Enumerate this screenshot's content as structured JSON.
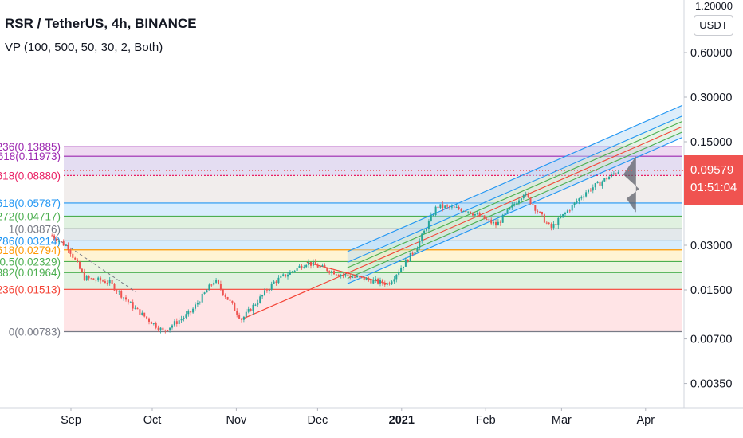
{
  "header": {
    "title": "RSR / TetherUS, 4h, BINANCE",
    "indicator": "VP (100, 500, 50, 30, 2, Both)"
  },
  "price_axis": {
    "unit": "USDT",
    "top_clipped_label": "1.20000",
    "last_price": "0.09579",
    "countdown": "01:51:04"
  },
  "colors": {
    "candle_up": "#26a69a",
    "candle_down": "#ef5350",
    "channel_blue": "#2196f3",
    "channel_green": "#4caf50",
    "median_red": "#f44336",
    "price_tag": "#f05350"
  },
  "chart_data": {
    "type": "candlestick",
    "symbol": "RSR / TetherUS",
    "timeframe": "4h",
    "exchange": "BINANCE",
    "y_scale": "log",
    "y_ticks": [
      0.6,
      0.3,
      0.15,
      0.03,
      0.015,
      0.007,
      0.0035
    ],
    "y_tick_labels": [
      "0.60000",
      "0.30000",
      "0.15000",
      "0.03000",
      "0.01500",
      "0.00700",
      "0.00350"
    ],
    "x_tick_labels": [
      "Sep",
      "Oct",
      "Nov",
      "Dec",
      "2021",
      "Feb",
      "Mar",
      "Apr"
    ],
    "fib_levels": [
      {
        "label": "236(0.13885)",
        "value": 0.13885,
        "color": "#9c27b0"
      },
      {
        "label": "618(0.11973)",
        "value": 0.11973,
        "color": "#9c27b0"
      },
      {
        "label": "618(0.08880)",
        "value": 0.0888,
        "color": "#e91e63"
      },
      {
        "label": "618(0.05787)",
        "value": 0.05787,
        "color": "#2196f3"
      },
      {
        "label": "272(0.04717)",
        "value": 0.04717,
        "color": "#4caf50"
      },
      {
        "label": "1(0.03876)",
        "value": 0.03876,
        "color": "#787b86"
      },
      {
        "label": "786(0.03214)",
        "value": 0.03214,
        "color": "#2196f3"
      },
      {
        "label": "618(0.02794)",
        "value": 0.02794,
        "color": "#ff9800"
      },
      {
        "label": "0.5(0.02329)",
        "value": 0.02329,
        "color": "#4caf50"
      },
      {
        "label": "382(0.01964)",
        "value": 0.01964,
        "color": "#4caf50"
      },
      {
        "label": "236(0.01513)",
        "value": 0.01513,
        "color": "#f44336"
      },
      {
        "label": "0(0.00783)",
        "value": 0.00783,
        "color": "#787b86"
      }
    ],
    "price_path": [
      {
        "date": "2020-08-25",
        "price": 0.035
      },
      {
        "date": "2020-08-31",
        "price": 0.029
      },
      {
        "date": "2020-09-06",
        "price": 0.018
      },
      {
        "date": "2020-09-15",
        "price": 0.017
      },
      {
        "date": "2020-09-25",
        "price": 0.011
      },
      {
        "date": "2020-10-05",
        "price": 0.0079
      },
      {
        "date": "2020-10-15",
        "price": 0.0105
      },
      {
        "date": "2020-10-24",
        "price": 0.0175
      },
      {
        "date": "2020-11-03",
        "price": 0.0095
      },
      {
        "date": "2020-11-15",
        "price": 0.017
      },
      {
        "date": "2020-11-27",
        "price": 0.023
      },
      {
        "date": "2020-12-10",
        "price": 0.019
      },
      {
        "date": "2020-12-27",
        "price": 0.0165
      },
      {
        "date": "2021-01-06",
        "price": 0.028
      },
      {
        "date": "2021-01-14",
        "price": 0.055
      },
      {
        "date": "2021-01-25",
        "price": 0.052
      },
      {
        "date": "2021-02-05",
        "price": 0.041
      },
      {
        "date": "2021-02-15",
        "price": 0.068
      },
      {
        "date": "2021-02-25",
        "price": 0.039
      },
      {
        "date": "2021-03-10",
        "price": 0.069
      },
      {
        "date": "2021-03-22",
        "price": 0.09579
      }
    ]
  }
}
